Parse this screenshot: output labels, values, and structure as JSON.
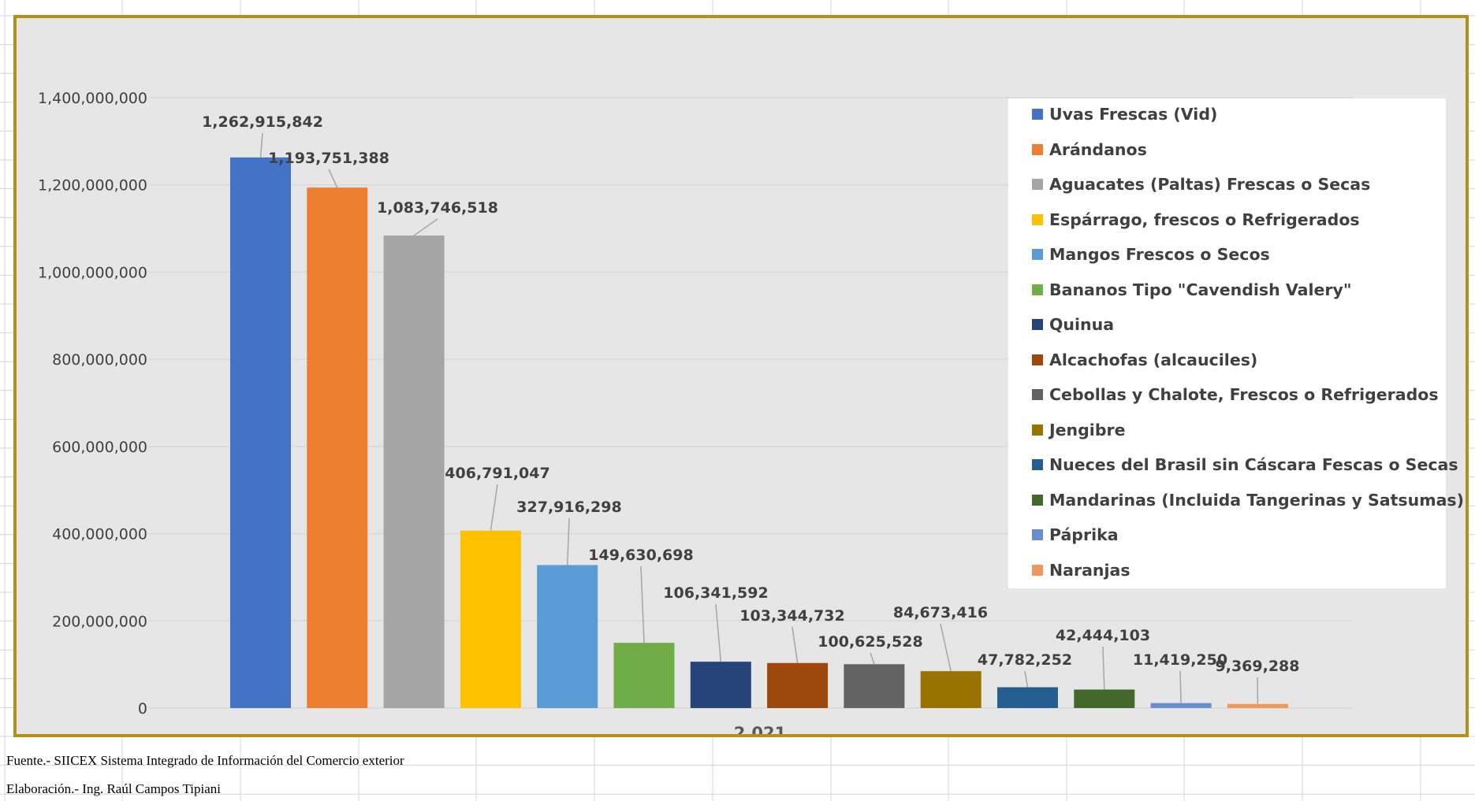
{
  "chart_data": {
    "type": "bar",
    "categories": [
      "2,021"
    ],
    "ylim": [
      0,
      1400000000
    ],
    "yticks": [
      "0",
      "200,000,000",
      "400,000,000",
      "600,000,000",
      "800,000,000",
      "1,000,000,000",
      "1,200,000,000",
      "1,400,000,000"
    ],
    "ytick_values": [
      0,
      200000000,
      400000000,
      600000000,
      800000000,
      1000000000,
      1200000000,
      1400000000
    ],
    "grid": true,
    "legend_position": "right",
    "series": [
      {
        "name": "Uvas Frescas (Vid)",
        "values": [
          1262915842
        ],
        "label": "1,262,915,842",
        "color": "#4472c4"
      },
      {
        "name": "Arándanos",
        "values": [
          1193751388
        ],
        "label": "1,193,751,388",
        "color": "#ed7d31"
      },
      {
        "name": "Aguacates (Paltas) Frescas o Secas",
        "values": [
          1083746518
        ],
        "label": "1,083,746,518",
        "color": "#a5a5a5"
      },
      {
        "name": "Espárrago, frescos o Refrigerados",
        "values": [
          406791047
        ],
        "label": "406,791,047",
        "color": "#ffc000"
      },
      {
        "name": "Mangos Frescos o Secos",
        "values": [
          327916298
        ],
        "label": "327,916,298",
        "color": "#5b9bd5"
      },
      {
        "name": "Bananos Tipo \"Cavendish Valery\"",
        "values": [
          149630698
        ],
        "label": "149,630,698",
        "color": "#70ad47"
      },
      {
        "name": "Quinua",
        "values": [
          106341592
        ],
        "label": "106,341,592",
        "color": "#264478"
      },
      {
        "name": "Alcachofas (alcauciles)",
        "values": [
          103344732
        ],
        "label": "103,344,732",
        "color": "#9e480e"
      },
      {
        "name": "Cebollas y Chalote, Frescos o Refrigerados",
        "values": [
          100625528
        ],
        "label": "100,625,528",
        "color": "#636363"
      },
      {
        "name": "Jengibre",
        "values": [
          84673416
        ],
        "label": "84,673,416",
        "color": "#997300"
      },
      {
        "name": "Nueces del Brasil sin Cáscara Fescas o Secas",
        "values": [
          47782252
        ],
        "label": "47,782,252",
        "color": "#255e91"
      },
      {
        "name": "Mandarinas (Incluida Tangerinas y Satsumas)",
        "values": [
          42444103
        ],
        "label": "42,444,103",
        "color": "#43682b"
      },
      {
        "name": "Páprika",
        "values": [
          11419250
        ],
        "label": "11,419,250",
        "color": "#698ed0"
      },
      {
        "name": "Naranjas",
        "values": [
          9369288
        ],
        "label": "9,369,288",
        "color": "#f1975a"
      }
    ]
  },
  "footer": {
    "source": "Fuente.- SIICEX Sistema Integrado de Información del Comercio exterior",
    "author": "Elaboración.- Ing. Raúl Campos Tipiani"
  }
}
